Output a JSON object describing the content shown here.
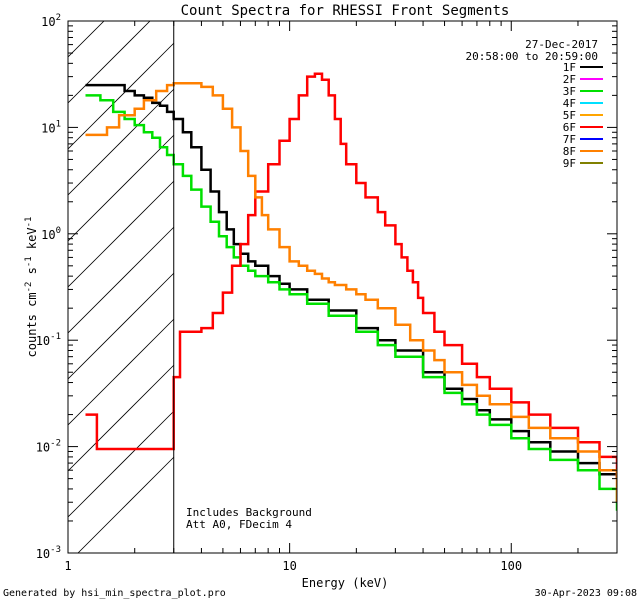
{
  "chart_data": {
    "type": "line",
    "title": "Count Spectra for RHESSI Front Segments",
    "xlabel": "Energy (keV)",
    "ylabel_parts": {
      "a": "counts cm",
      "b": "-2",
      "c": " s",
      "d": "-1",
      "e": " keV",
      "f": "-1"
    },
    "xscale": "log",
    "yscale": "log",
    "xlim": [
      1,
      300
    ],
    "ylim": [
      0.001,
      100
    ],
    "x_ticks": [
      {
        "value": 1,
        "label": "1"
      },
      {
        "value": 10,
        "label": "10"
      },
      {
        "value": 100,
        "label": "100"
      }
    ],
    "y_ticks": [
      {
        "value": 100,
        "base": "10",
        "exp": "2"
      },
      {
        "value": 10,
        "base": "10",
        "exp": "1"
      },
      {
        "value": 1,
        "base": "10",
        "exp": "0"
      },
      {
        "value": 0.1,
        "base": "10",
        "exp": "-1"
      },
      {
        "value": 0.01,
        "base": "10",
        "exp": "-2"
      },
      {
        "value": 0.001,
        "base": "10",
        "exp": "-3"
      }
    ],
    "hatched_region_kev": [
      1,
      3
    ],
    "date": "27-Dec-2017",
    "time_range": "20:58:00 to 20:59:00",
    "annotations": [
      "Includes Background",
      "Att A0, FDecim 4"
    ],
    "legend": [
      {
        "label": "1F",
        "color": "#000000"
      },
      {
        "label": "2F",
        "color": "#ff00ff"
      },
      {
        "label": "3F",
        "color": "#00e000"
      },
      {
        "label": "4F",
        "color": "#00e0ff"
      },
      {
        "label": "5F",
        "color": "#ffa500"
      },
      {
        "label": "6F",
        "color": "#ff0000"
      },
      {
        "label": "7F",
        "color": "#0000ff"
      },
      {
        "label": "8F",
        "color": "#ff8000"
      },
      {
        "label": "9F",
        "color": "#808000"
      }
    ],
    "series": [
      {
        "name": "1F",
        "color": "#000000",
        "points": [
          [
            1.2,
            25
          ],
          [
            1.5,
            25
          ],
          [
            1.8,
            22
          ],
          [
            2,
            20
          ],
          [
            2.2,
            19
          ],
          [
            2.4,
            17
          ],
          [
            2.6,
            16
          ],
          [
            2.8,
            14
          ],
          [
            3,
            12
          ],
          [
            3.3,
            9
          ],
          [
            3.6,
            6.5
          ],
          [
            4,
            4
          ],
          [
            4.4,
            2.5
          ],
          [
            4.8,
            1.6
          ],
          [
            5.2,
            1.1
          ],
          [
            5.6,
            0.8
          ],
          [
            6,
            0.65
          ],
          [
            6.5,
            0.55
          ],
          [
            7,
            0.5
          ],
          [
            8,
            0.4
          ],
          [
            9,
            0.34
          ],
          [
            10,
            0.3
          ],
          [
            12,
            0.24
          ],
          [
            15,
            0.19
          ],
          [
            20,
            0.13
          ],
          [
            25,
            0.1
          ],
          [
            30,
            0.08
          ],
          [
            40,
            0.05
          ],
          [
            50,
            0.035
          ],
          [
            60,
            0.028
          ],
          [
            70,
            0.022
          ],
          [
            80,
            0.018
          ],
          [
            100,
            0.014
          ],
          [
            120,
            0.011
          ],
          [
            150,
            0.009
          ],
          [
            200,
            0.007
          ],
          [
            250,
            0.0055
          ],
          [
            300,
            0.005
          ]
        ]
      },
      {
        "name": "3F",
        "color": "#00e000",
        "points": [
          [
            1.2,
            20
          ],
          [
            1.4,
            18
          ],
          [
            1.6,
            14
          ],
          [
            1.8,
            12
          ],
          [
            2,
            10.5
          ],
          [
            2.2,
            9
          ],
          [
            2.4,
            8
          ],
          [
            2.6,
            6.5
          ],
          [
            2.8,
            5.5
          ],
          [
            3,
            4.5
          ],
          [
            3.3,
            3.5
          ],
          [
            3.6,
            2.6
          ],
          [
            4,
            1.8
          ],
          [
            4.4,
            1.3
          ],
          [
            4.8,
            0.95
          ],
          [
            5.2,
            0.75
          ],
          [
            5.6,
            0.6
          ],
          [
            6,
            0.5
          ],
          [
            6.5,
            0.45
          ],
          [
            7,
            0.4
          ],
          [
            8,
            0.35
          ],
          [
            9,
            0.3
          ],
          [
            10,
            0.27
          ],
          [
            12,
            0.22
          ],
          [
            15,
            0.17
          ],
          [
            20,
            0.12
          ],
          [
            25,
            0.09
          ],
          [
            30,
            0.07
          ],
          [
            40,
            0.045
          ],
          [
            50,
            0.032
          ],
          [
            60,
            0.025
          ],
          [
            70,
            0.02
          ],
          [
            80,
            0.016
          ],
          [
            100,
            0.012
          ],
          [
            120,
            0.0095
          ],
          [
            150,
            0.0075
          ],
          [
            200,
            0.006
          ],
          [
            250,
            0.004
          ],
          [
            300,
            0.0025
          ]
        ]
      },
      {
        "name": "6F",
        "color": "#ff0000",
        "points": [
          [
            1.2,
            0.02
          ],
          [
            1.3,
            0.02
          ],
          [
            1.35,
            0.0095
          ],
          [
            1.7,
            0.0095
          ],
          [
            3,
            0.045
          ],
          [
            3.2,
            0.12
          ],
          [
            3.8,
            0.12
          ],
          [
            4,
            0.13
          ],
          [
            4.5,
            0.18
          ],
          [
            5,
            0.28
          ],
          [
            5.5,
            0.5
          ],
          [
            6,
            0.8
          ],
          [
            6.5,
            1.5
          ],
          [
            7,
            2.5
          ],
          [
            8,
            4.5
          ],
          [
            9,
            7.5
          ],
          [
            10,
            12
          ],
          [
            11,
            20
          ],
          [
            12,
            30
          ],
          [
            13,
            32
          ],
          [
            14,
            28
          ],
          [
            15,
            20
          ],
          [
            16,
            12
          ],
          [
            17,
            7
          ],
          [
            18,
            4.5
          ],
          [
            20,
            3
          ],
          [
            22,
            2.2
          ],
          [
            25,
            1.6
          ],
          [
            27,
            1.2
          ],
          [
            30,
            0.8
          ],
          [
            32,
            0.6
          ],
          [
            34,
            0.45
          ],
          [
            36,
            0.35
          ],
          [
            38,
            0.25
          ],
          [
            40,
            0.18
          ],
          [
            45,
            0.12
          ],
          [
            50,
            0.09
          ],
          [
            60,
            0.06
          ],
          [
            70,
            0.045
          ],
          [
            80,
            0.035
          ],
          [
            100,
            0.026
          ],
          [
            120,
            0.02
          ],
          [
            150,
            0.015
          ],
          [
            200,
            0.011
          ],
          [
            250,
            0.008
          ],
          [
            300,
            0.005
          ]
        ]
      },
      {
        "name": "8F",
        "color": "#ff8000",
        "points": [
          [
            1.2,
            8.5
          ],
          [
            1.5,
            10
          ],
          [
            1.7,
            13
          ],
          [
            2,
            15
          ],
          [
            2.2,
            18
          ],
          [
            2.5,
            22
          ],
          [
            2.8,
            25
          ],
          [
            3,
            26
          ],
          [
            3.5,
            26
          ],
          [
            4,
            24
          ],
          [
            4.5,
            20
          ],
          [
            5,
            15
          ],
          [
            5.5,
            10
          ],
          [
            6,
            6
          ],
          [
            6.5,
            3.5
          ],
          [
            7,
            2.2
          ],
          [
            7.5,
            1.5
          ],
          [
            8,
            1.1
          ],
          [
            9,
            0.75
          ],
          [
            10,
            0.55
          ],
          [
            11,
            0.5
          ],
          [
            12,
            0.45
          ],
          [
            13,
            0.42
          ],
          [
            14,
            0.38
          ],
          [
            15,
            0.35
          ],
          [
            16,
            0.33
          ],
          [
            18,
            0.3
          ],
          [
            20,
            0.27
          ],
          [
            22,
            0.24
          ],
          [
            25,
            0.2
          ],
          [
            30,
            0.14
          ],
          [
            35,
            0.1
          ],
          [
            40,
            0.08
          ],
          [
            45,
            0.065
          ],
          [
            50,
            0.05
          ],
          [
            60,
            0.038
          ],
          [
            70,
            0.03
          ],
          [
            80,
            0.025
          ],
          [
            100,
            0.019
          ],
          [
            120,
            0.015
          ],
          [
            150,
            0.012
          ],
          [
            200,
            0.009
          ],
          [
            250,
            0.006
          ],
          [
            300,
            0.003
          ]
        ]
      }
    ]
  },
  "footer": {
    "generated_by": "Generated by hsi_min_spectra_plot.pro",
    "timestamp": "30-Apr-2023 09:08"
  }
}
